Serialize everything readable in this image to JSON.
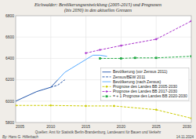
{
  "chart_data": {
    "type": "line",
    "title": "Eichwalder: Bevölkerungsentwicklung (2005-2015) und Prognosen\n(bis 2030) in den aktuellen Grenzen",
    "xlim": [
      2005,
      2030
    ],
    "xticks": [
      2005,
      2010,
      2015,
      2020,
      2025,
      2030
    ],
    "ylim": [
      5800,
      6800
    ],
    "yticks": [
      5800,
      6000,
      6200,
      6400,
      6600,
      6800
    ],
    "grid": true,
    "legend": "lower right",
    "series": [
      {
        "name": "Bevölkerung (vor Zensus 2011)",
        "color": "#2255aa",
        "line_style": "solid",
        "marker": "none",
        "x": [
          2005,
          2006,
          2007,
          2008,
          2009,
          2010,
          2011
        ],
        "values": [
          6000,
          6030,
          6060,
          6090,
          6110,
          6130,
          6200
        ]
      },
      {
        "name": "Zensus/BEW 2011",
        "color": "#2255aa",
        "line_style": "dashed",
        "marker": "none",
        "x": [
          2010,
          2011,
          2012
        ],
        "values": [
          6130,
          6150,
          6200
        ]
      },
      {
        "name": "Bevölkerung (nach Zensus)",
        "color": "#55aaff",
        "line_style": "solid",
        "marker": "none",
        "x": [
          2011,
          2012,
          2013,
          2014,
          2015,
          2016,
          2017,
          2018
        ],
        "values": [
          6200,
          6270,
          6310,
          6350,
          6390,
          6430,
          6430,
          6420
        ]
      },
      {
        "name": "Prognose des Landes BB 2005-2030",
        "color": "#cccc00",
        "line_style": "dashed",
        "marker": "diamond",
        "x": [
          2005,
          2010,
          2015,
          2019,
          2025,
          2030
        ],
        "values": [
          5960,
          5960,
          5955,
          5955,
          5920,
          5840
        ]
      },
      {
        "name": "Prognose des Landes BB 2017-2030",
        "color": "#aa33cc",
        "line_style": "dashed",
        "marker": "diamond",
        "x": [
          2015,
          2017,
          2020,
          2025,
          2030
        ],
        "values": [
          6450,
          6480,
          6520,
          6580,
          6750
        ]
      },
      {
        "name": "= + 1 Prognose des Landes BB 2020-2030",
        "color": "#22aa44",
        "line_style": "dashed",
        "marker": "square",
        "x": [
          2017,
          2020,
          2022,
          2025,
          2030
        ],
        "values": [
          6400,
          6400,
          6405,
          6405,
          6420
        ]
      }
    ],
    "annotations": [
      "By: Hans G. Hilferbach",
      "Quellen: Amt für Statistik Berlin-Brandenburg, Landesamt für Bauen und Verkehr",
      "14.11.2024"
    ]
  }
}
